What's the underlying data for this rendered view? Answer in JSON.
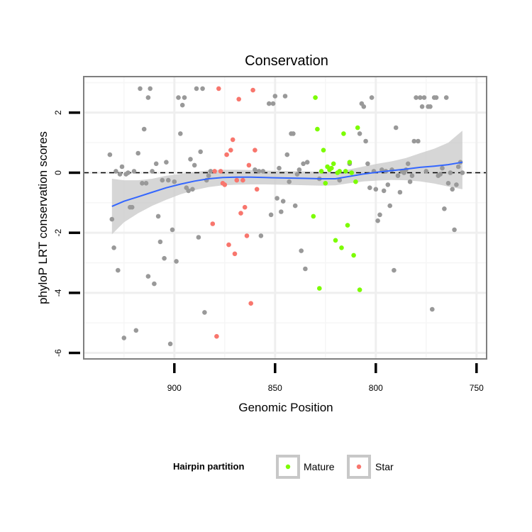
{
  "chart_data": {
    "type": "scatter",
    "title": "Conservation",
    "xlabel": "Genomic Position",
    "ylabel": "phyloP LRT conservation scores",
    "xlim": [
      945,
      745
    ],
    "ylim": [
      -6.2,
      3.2
    ],
    "x_reversed": true,
    "x_ticks": [
      900,
      850,
      800,
      750
    ],
    "y_ticks": [
      -6,
      -4,
      -2,
      0,
      2
    ],
    "reference_line_y": 0,
    "legend": {
      "title": "Hairpin partition",
      "position": "bottom",
      "entries": [
        {
          "label": "Mature",
          "color": "#7CFC00"
        },
        {
          "label": "Star",
          "color": "#F8766D"
        }
      ]
    },
    "colors": {
      "Other": "#999999",
      "Mature": "#7CFC00",
      "Star": "#F8766D",
      "smooth": "#3366FF",
      "band": "#cccccc"
    },
    "series": [
      {
        "name": "Other",
        "points": [
          [
            932,
            0.6
          ],
          [
            931,
            -1.55
          ],
          [
            930,
            -2.5
          ],
          [
            929,
            0.05
          ],
          [
            928,
            -3.25
          ],
          [
            927,
            -0.05
          ],
          [
            926,
            0.2
          ],
          [
            925,
            -5.5
          ],
          [
            924,
            -0.05
          ],
          [
            923,
            0
          ],
          [
            922,
            -1.15
          ],
          [
            921,
            -1.15
          ],
          [
            920,
            0.05
          ],
          [
            919,
            -5.25
          ],
          [
            918,
            0.65
          ],
          [
            917,
            2.8
          ],
          [
            916,
            -0.35
          ],
          [
            915,
            1.45
          ],
          [
            914,
            -0.35
          ],
          [
            913,
            -3.45
          ],
          [
            913,
            2.5
          ],
          [
            912,
            2.8
          ],
          [
            911,
            0.05
          ],
          [
            910,
            -3.7
          ],
          [
            909,
            0.3
          ],
          [
            908,
            -1.45
          ],
          [
            907,
            -2.3
          ],
          [
            906,
            -0.25
          ],
          [
            905,
            -2.85
          ],
          [
            904,
            0.35
          ],
          [
            903,
            -0.25
          ],
          [
            902,
            -5.7
          ],
          [
            901,
            -1.9
          ],
          [
            900,
            -0.3
          ],
          [
            899,
            -2.95
          ],
          [
            898,
            2.5
          ],
          [
            897,
            1.3
          ],
          [
            896,
            2.25
          ],
          [
            895,
            2.5
          ],
          [
            894,
            -0.5
          ],
          [
            893,
            -0.6
          ],
          [
            892,
            0.45
          ],
          [
            891,
            -0.55
          ],
          [
            890,
            0.25
          ],
          [
            889,
            2.8
          ],
          [
            888,
            -2.15
          ],
          [
            887,
            0.7
          ],
          [
            886,
            2.8
          ],
          [
            885,
            -4.65
          ],
          [
            884,
            -0.25
          ],
          [
            883,
            -0.1
          ],
          [
            882,
            0.05
          ],
          [
            860,
            0.1
          ],
          [
            858,
            0.05
          ],
          [
            857,
            -2.1
          ],
          [
            856,
            0.05
          ],
          [
            853,
            2.3
          ],
          [
            852,
            -1.4
          ],
          [
            851,
            2.3
          ],
          [
            850,
            2.55
          ],
          [
            849,
            -0.85
          ],
          [
            848,
            0.15
          ],
          [
            847,
            -1.3
          ],
          [
            846,
            -0.95
          ],
          [
            845,
            2.55
          ],
          [
            844,
            0.6
          ],
          [
            843,
            -0.3
          ],
          [
            842,
            1.3
          ],
          [
            841,
            1.3
          ],
          [
            840,
            -1.1
          ],
          [
            839,
            -0.05
          ],
          [
            838,
            0.1
          ],
          [
            837,
            -2.6
          ],
          [
            836,
            0.3
          ],
          [
            835,
            -3.2
          ],
          [
            834,
            0.35
          ],
          [
            828,
            -0.2
          ],
          [
            818,
            -0.25
          ],
          [
            813,
            0.3
          ],
          [
            808,
            1.3
          ],
          [
            807,
            2.3
          ],
          [
            806,
            2.2
          ],
          [
            805,
            1.05
          ],
          [
            804,
            0.3
          ],
          [
            803,
            -0.5
          ],
          [
            802,
            2.5
          ],
          [
            801,
            0.05
          ],
          [
            800,
            -0.55
          ],
          [
            799,
            -1.6
          ],
          [
            798,
            -1.4
          ],
          [
            797,
            0.1
          ],
          [
            796,
            -0.6
          ],
          [
            795,
            0.05
          ],
          [
            794,
            -0.4
          ],
          [
            793,
            -1.1
          ],
          [
            792,
            0.1
          ],
          [
            791,
            -3.25
          ],
          [
            790,
            1.5
          ],
          [
            789,
            -0.1
          ],
          [
            788,
            -0.65
          ],
          [
            787,
            0.05
          ],
          [
            786,
            0
          ],
          [
            785,
            0.1
          ],
          [
            784,
            0.3
          ],
          [
            783,
            -0.3
          ],
          [
            782,
            -0.1
          ],
          [
            781,
            1.05
          ],
          [
            780,
            2.5
          ],
          [
            779,
            1.05
          ],
          [
            778,
            2.5
          ],
          [
            777,
            2.2
          ],
          [
            776,
            2.5
          ],
          [
            775,
            0.05
          ],
          [
            774,
            2.2
          ],
          [
            773,
            2.2
          ],
          [
            772,
            -4.55
          ],
          [
            771,
            2.5
          ],
          [
            770,
            2.5
          ],
          [
            769,
            -0.1
          ],
          [
            768,
            -0.05
          ],
          [
            767,
            0.15
          ],
          [
            766,
            -1.2
          ],
          [
            765,
            2.5
          ],
          [
            764,
            -0.35
          ],
          [
            763,
            0
          ],
          [
            762,
            -0.55
          ],
          [
            761,
            -1.9
          ],
          [
            760,
            -0.4
          ],
          [
            759,
            0.2
          ],
          [
            758,
            0.35
          ],
          [
            757,
            0
          ]
        ]
      },
      {
        "name": "Mature",
        "points": [
          [
            831,
            -1.45
          ],
          [
            830,
            2.5
          ],
          [
            829,
            1.45
          ],
          [
            828,
            -3.85
          ],
          [
            827,
            0.05
          ],
          [
            826,
            0.75
          ],
          [
            825,
            -0.35
          ],
          [
            824,
            0.2
          ],
          [
            823,
            0.1
          ],
          [
            822,
            0.15
          ],
          [
            821,
            0.3
          ],
          [
            820,
            -2.25
          ],
          [
            819,
            0
          ],
          [
            818,
            0.05
          ],
          [
            817,
            -2.5
          ],
          [
            816,
            1.3
          ],
          [
            815,
            0.05
          ],
          [
            814,
            -1.75
          ],
          [
            813,
            0.35
          ],
          [
            812,
            0
          ],
          [
            811,
            -2.75
          ],
          [
            810,
            -0.3
          ],
          [
            809,
            1.5
          ],
          [
            808,
            -3.9
          ]
        ]
      },
      {
        "name": "Star",
        "points": [
          [
            881,
            -1.7
          ],
          [
            880,
            0.05
          ],
          [
            879,
            -5.45
          ],
          [
            878,
            2.8
          ],
          [
            877,
            0.05
          ],
          [
            876,
            -0.35
          ],
          [
            875,
            -0.4
          ],
          [
            874,
            0.6
          ],
          [
            873,
            -2.4
          ],
          [
            872,
            0.75
          ],
          [
            871,
            1.1
          ],
          [
            870,
            -2.7
          ],
          [
            869,
            -0.25
          ],
          [
            868,
            2.45
          ],
          [
            867,
            -1.35
          ],
          [
            866,
            -0.25
          ],
          [
            865,
            -1.15
          ],
          [
            864,
            -2.1
          ],
          [
            863,
            0.25
          ],
          [
            862,
            -4.35
          ],
          [
            861,
            2.75
          ],
          [
            860,
            0.75
          ],
          [
            859,
            -0.55
          ]
        ]
      }
    ],
    "smooth": {
      "x": [
        931,
        925,
        918,
        911,
        904,
        897,
        890,
        883,
        876,
        869,
        862,
        855,
        848,
        841,
        834,
        827,
        820,
        813,
        806,
        799,
        792,
        785,
        778,
        771,
        764,
        757
      ],
      "y": [
        -1.12,
        -0.95,
        -0.8,
        -0.65,
        -0.5,
        -0.38,
        -0.28,
        -0.2,
        -0.16,
        -0.15,
        -0.15,
        -0.16,
        -0.17,
        -0.18,
        -0.19,
        -0.2,
        -0.2,
        -0.12,
        -0.04,
        0.02,
        0.07,
        0.12,
        0.18,
        0.22,
        0.27,
        0.35
      ],
      "lower": [
        -2.05,
        -1.65,
        -1.35,
        -1.1,
        -0.9,
        -0.72,
        -0.58,
        -0.48,
        -0.42,
        -0.4,
        -0.39,
        -0.39,
        -0.4,
        -0.41,
        -0.42,
        -0.43,
        -0.42,
        -0.35,
        -0.29,
        -0.26,
        -0.24,
        -0.25,
        -0.29,
        -0.36,
        -0.46,
        -0.55
      ],
      "upper": [
        -0.2,
        -0.25,
        -0.25,
        -0.2,
        -0.1,
        -0.04,
        0.02,
        0.08,
        0.1,
        0.1,
        0.09,
        0.07,
        0.06,
        0.05,
        0.04,
        0.03,
        0.02,
        0.11,
        0.21,
        0.3,
        0.38,
        0.49,
        0.65,
        0.8,
        1.0,
        1.4
      ]
    }
  }
}
